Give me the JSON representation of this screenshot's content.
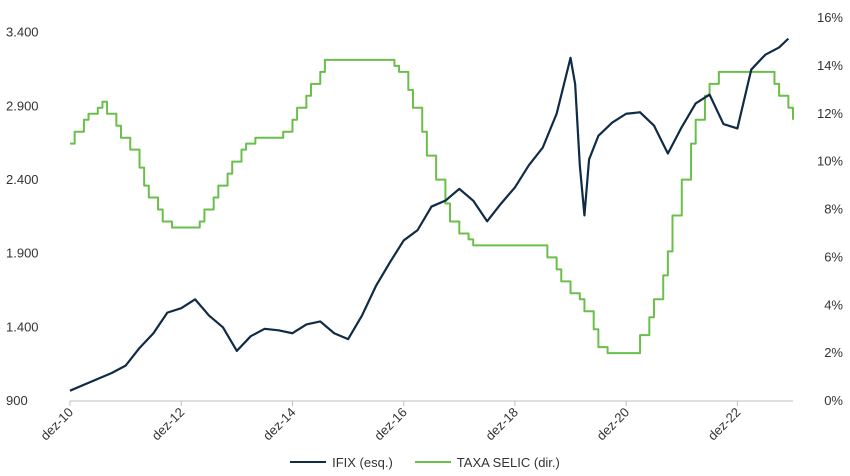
{
  "chart_data": {
    "type": "line",
    "title": "",
    "xlabel": "",
    "x_ticks": [
      "dez-10",
      "dez-12",
      "dez-14",
      "dez-16",
      "dez-18",
      "dez-20",
      "dez-22"
    ],
    "xlim": [
      "2010-12",
      "2023-12"
    ],
    "y_left": {
      "ticks": [
        "900",
        "1.400",
        "1.900",
        "2.400",
        "2.900",
        "3.400"
      ],
      "ylim": [
        900,
        3500
      ]
    },
    "y_right": {
      "ticks": [
        "0%",
        "2%",
        "4%",
        "6%",
        "8%",
        "10%",
        "12%",
        "14%",
        "16%"
      ],
      "ylim": [
        0,
        16
      ]
    },
    "grid": false,
    "legend_position": "bottom",
    "series": [
      {
        "name": "IFIX (esq.)",
        "axis": "left",
        "color": "#0f2b46",
        "type": "line",
        "x": [
          "2010-12",
          "2011-03",
          "2011-06",
          "2011-09",
          "2011-12",
          "2012-03",
          "2012-06",
          "2012-09",
          "2012-12",
          "2013-03",
          "2013-06",
          "2013-09",
          "2013-12",
          "2014-03",
          "2014-06",
          "2014-09",
          "2014-12",
          "2015-03",
          "2015-06",
          "2015-09",
          "2015-12",
          "2016-03",
          "2016-06",
          "2016-09",
          "2016-12",
          "2017-03",
          "2017-06",
          "2017-09",
          "2017-12",
          "2018-03",
          "2018-06",
          "2018-09",
          "2018-12",
          "2019-03",
          "2019-06",
          "2019-09",
          "2019-12",
          "2020-01",
          "2020-02",
          "2020-03",
          "2020-04",
          "2020-06",
          "2020-09",
          "2020-12",
          "2021-03",
          "2021-06",
          "2021-09",
          "2021-12",
          "2022-03",
          "2022-06",
          "2022-09",
          "2022-12",
          "2023-03",
          "2023-06",
          "2023-09",
          "2023-11"
        ],
        "values": [
          970,
          1010,
          1050,
          1090,
          1140,
          1260,
          1360,
          1500,
          1530,
          1590,
          1480,
          1400,
          1240,
          1340,
          1390,
          1380,
          1360,
          1420,
          1440,
          1360,
          1320,
          1480,
          1680,
          1840,
          1990,
          2060,
          2220,
          2260,
          2340,
          2260,
          2120,
          2240,
          2350,
          2500,
          2620,
          2850,
          3230,
          3050,
          2500,
          2160,
          2540,
          2700,
          2790,
          2850,
          2860,
          2770,
          2580,
          2760,
          2920,
          2980,
          2780,
          2750,
          3150,
          3250,
          3300,
          3360
        ]
      },
      {
        "name": "TAXA SELIC (dir.)",
        "axis": "right",
        "color": "#6abf4b",
        "type": "step",
        "x": [
          "2010-12",
          "2011-01",
          "2011-03",
          "2011-04",
          "2011-06",
          "2011-07",
          "2011-08",
          "2011-10",
          "2011-11",
          "2012-01",
          "2012-03",
          "2012-04",
          "2012-05",
          "2012-07",
          "2012-08",
          "2012-10",
          "2013-04",
          "2013-05",
          "2013-07",
          "2013-08",
          "2013-10",
          "2013-11",
          "2014-01",
          "2014-02",
          "2014-04",
          "2014-10",
          "2014-12",
          "2015-01",
          "2015-03",
          "2015-04",
          "2015-06",
          "2015-07",
          "2016-10",
          "2016-11",
          "2017-01",
          "2017-02",
          "2017-04",
          "2017-05",
          "2017-07",
          "2017-09",
          "2017-10",
          "2017-12",
          "2018-02",
          "2018-03",
          "2019-07",
          "2019-09",
          "2019-10",
          "2019-12",
          "2020-02",
          "2020-03",
          "2020-05",
          "2020-06",
          "2020-08",
          "2021-03",
          "2021-05",
          "2021-06",
          "2021-08",
          "2021-09",
          "2021-10",
          "2021-12",
          "2022-02",
          "2022-03",
          "2022-05",
          "2022-06",
          "2022-08",
          "2023-08",
          "2023-09",
          "2023-11",
          "2023-12"
        ],
        "values": [
          10.75,
          11.25,
          11.75,
          12.0,
          12.25,
          12.5,
          12.0,
          11.5,
          11.0,
          10.5,
          9.75,
          9.0,
          8.5,
          8.0,
          7.5,
          7.25,
          7.5,
          8.0,
          8.5,
          9.0,
          9.5,
          10.0,
          10.5,
          10.75,
          11.0,
          11.25,
          11.75,
          12.25,
          12.75,
          13.25,
          13.75,
          14.25,
          14.0,
          13.75,
          13.0,
          12.25,
          11.25,
          10.25,
          9.25,
          8.25,
          7.5,
          7.0,
          6.75,
          6.5,
          6.0,
          5.5,
          5.0,
          4.5,
          4.25,
          3.75,
          3.0,
          2.25,
          2.0,
          2.75,
          3.5,
          4.25,
          5.25,
          6.25,
          7.75,
          9.25,
          10.75,
          11.75,
          12.75,
          13.25,
          13.75,
          13.25,
          12.75,
          12.25,
          11.75
        ]
      }
    ]
  }
}
